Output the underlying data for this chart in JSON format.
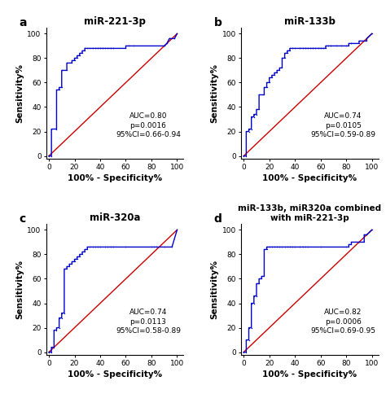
{
  "panels": [
    {
      "label": "a",
      "title": "miR-221-3p",
      "auc_text": "AUC=0.80\np=0.0016\n95%CI=0.66-0.94",
      "roc_x": [
        0,
        2,
        2,
        6,
        6,
        8,
        8,
        10,
        10,
        14,
        14,
        18,
        18,
        20,
        20,
        22,
        22,
        24,
        24,
        26,
        26,
        28,
        28,
        30,
        30,
        32,
        32,
        34,
        34,
        36,
        36,
        38,
        38,
        40,
        40,
        42,
        42,
        44,
        44,
        46,
        46,
        48,
        48,
        50,
        50,
        60,
        60,
        62,
        62,
        66,
        66,
        90,
        90,
        92,
        92,
        94,
        94,
        98,
        98,
        100
      ],
      "roc_y": [
        0,
        0,
        22,
        22,
        54,
        54,
        56,
        56,
        70,
        70,
        76,
        76,
        78,
        78,
        80,
        80,
        82,
        82,
        84,
        84,
        86,
        86,
        88,
        88,
        88,
        88,
        88,
        88,
        88,
        88,
        88,
        88,
        88,
        88,
        88,
        88,
        88,
        88,
        88,
        88,
        88,
        88,
        88,
        88,
        88,
        88,
        90,
        90,
        90,
        90,
        90,
        90,
        90,
        92,
        92,
        96,
        96,
        96,
        96,
        100
      ]
    },
    {
      "label": "b",
      "title": "miR-133b",
      "auc_text": "AUC=0.74\np=0.0105\n95%CI=0.59-0.89",
      "roc_x": [
        0,
        2,
        2,
        4,
        4,
        6,
        6,
        8,
        8,
        10,
        10,
        12,
        12,
        16,
        16,
        18,
        18,
        20,
        20,
        22,
        22,
        24,
        24,
        26,
        26,
        28,
        28,
        30,
        30,
        32,
        32,
        34,
        34,
        36,
        36,
        38,
        38,
        40,
        40,
        44,
        44,
        46,
        46,
        48,
        48,
        50,
        50,
        52,
        52,
        54,
        54,
        56,
        56,
        58,
        58,
        60,
        60,
        62,
        62,
        64,
        64,
        66,
        66,
        68,
        68,
        72,
        72,
        76,
        76,
        80,
        80,
        82,
        82,
        84,
        84,
        90,
        90,
        96,
        96,
        100
      ],
      "roc_y": [
        0,
        0,
        20,
        20,
        22,
        22,
        32,
        32,
        34,
        34,
        38,
        38,
        50,
        50,
        56,
        56,
        60,
        60,
        64,
        64,
        66,
        66,
        68,
        68,
        70,
        70,
        72,
        72,
        80,
        80,
        84,
        84,
        86,
        86,
        88,
        88,
        88,
        88,
        88,
        88,
        88,
        88,
        88,
        88,
        88,
        88,
        88,
        88,
        88,
        88,
        88,
        88,
        88,
        88,
        88,
        88,
        88,
        88,
        88,
        88,
        90,
        90,
        90,
        90,
        90,
        90,
        90,
        90,
        90,
        90,
        90,
        90,
        92,
        92,
        92,
        92,
        94,
        94,
        96,
        100
      ]
    },
    {
      "label": "c",
      "title": "miR-320a",
      "auc_text": "AUC=0.74\np=0.0113\n95%CI=0.58-0.89",
      "roc_x": [
        0,
        2,
        2,
        4,
        4,
        6,
        6,
        8,
        8,
        10,
        10,
        12,
        12,
        14,
        14,
        16,
        16,
        18,
        18,
        20,
        20,
        22,
        22,
        24,
        24,
        26,
        26,
        28,
        28,
        30,
        30,
        32,
        32,
        34,
        34,
        36,
        36,
        38,
        38,
        40,
        40,
        44,
        44,
        46,
        46,
        48,
        48,
        50,
        50,
        60,
        60,
        80,
        80,
        82,
        82,
        84,
        84,
        90,
        90,
        96,
        96,
        100
      ],
      "roc_y": [
        0,
        0,
        4,
        4,
        18,
        18,
        20,
        20,
        28,
        28,
        32,
        32,
        68,
        68,
        70,
        70,
        72,
        72,
        74,
        74,
        76,
        76,
        78,
        78,
        80,
        80,
        82,
        82,
        84,
        84,
        86,
        86,
        86,
        86,
        86,
        86,
        86,
        86,
        86,
        86,
        86,
        86,
        86,
        86,
        86,
        86,
        86,
        86,
        86,
        86,
        86,
        86,
        86,
        86,
        86,
        86,
        86,
        86,
        86,
        86,
        86,
        100
      ]
    },
    {
      "label": "d",
      "title": "miR-133b, miR320a combined\nwith miR-221-3p",
      "auc_text": "AUC=0.82\np=0.0006\n95%CI=0.69-0.95",
      "roc_x": [
        0,
        2,
        2,
        4,
        4,
        6,
        6,
        8,
        8,
        10,
        10,
        12,
        12,
        14,
        14,
        16,
        16,
        18,
        18,
        20,
        20,
        22,
        22,
        24,
        24,
        26,
        26,
        28,
        28,
        30,
        30,
        32,
        32,
        34,
        34,
        36,
        36,
        38,
        38,
        40,
        40,
        44,
        44,
        46,
        46,
        48,
        48,
        50,
        50,
        60,
        60,
        80,
        80,
        82,
        82,
        84,
        84,
        90,
        90,
        94,
        94,
        96,
        96,
        100
      ],
      "roc_y": [
        0,
        0,
        10,
        10,
        20,
        20,
        40,
        40,
        46,
        46,
        56,
        56,
        60,
        60,
        62,
        62,
        84,
        84,
        86,
        86,
        86,
        86,
        86,
        86,
        86,
        86,
        86,
        86,
        86,
        86,
        86,
        86,
        86,
        86,
        86,
        86,
        86,
        86,
        86,
        86,
        86,
        86,
        86,
        86,
        86,
        86,
        86,
        86,
        86,
        86,
        86,
        86,
        86,
        86,
        88,
        88,
        90,
        90,
        90,
        90,
        96,
        96,
        96,
        100
      ]
    }
  ],
  "roc_color": "#0000CD",
  "diag_color": "#CC0000",
  "bg_color": "#ffffff",
  "tick_fontsize": 6.5,
  "label_fontsize": 7.5,
  "title_fontsize": 8.5,
  "title_d_fontsize": 7.5,
  "annot_fontsize": 6.5,
  "panel_label_fontsize": 10
}
